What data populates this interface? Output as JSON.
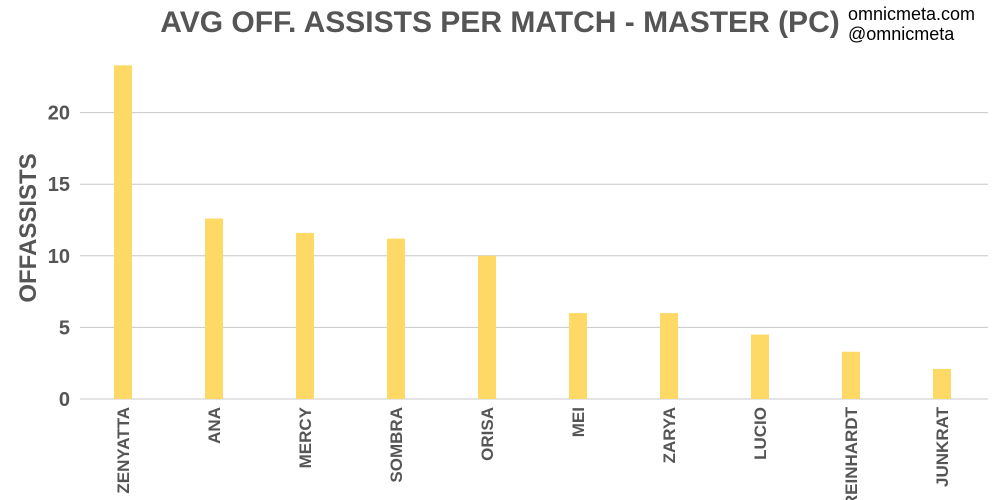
{
  "credits": {
    "site": "omnicmeta.com",
    "handle": "@omnicmeta"
  },
  "chart_data": {
    "type": "bar",
    "title": "AVG OFF. ASSISTS PER MATCH - MASTER (PC)",
    "ylabel": "OFFASSISTS",
    "xlabel": "",
    "categories": [
      "ZENYATTA",
      "ANA",
      "MERCY",
      "SOMBRA",
      "ORISA",
      "MEI",
      "ZARYA",
      "LUCIO",
      "REINHARDT",
      "JUNKRAT"
    ],
    "values": [
      23.3,
      12.6,
      11.6,
      11.2,
      10.0,
      6.0,
      6.0,
      4.5,
      3.3,
      2.1
    ],
    "ylim": [
      0,
      25
    ],
    "yticks": [
      0,
      5,
      10,
      15,
      20
    ],
    "grid": true,
    "legend": "none",
    "bar_color": "#FFD966",
    "grid_color": "#C8C8C8",
    "text_color": "#555555"
  }
}
